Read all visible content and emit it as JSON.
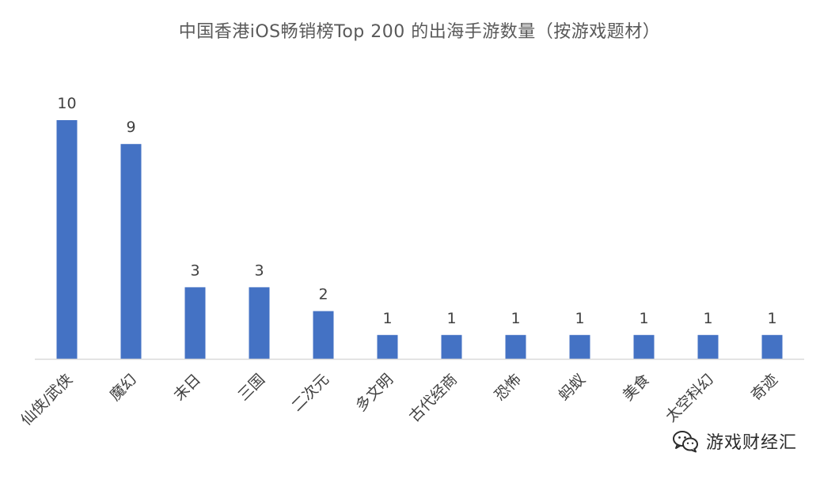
{
  "chart_data": {
    "type": "bar",
    "title": "中国香港iOS畅销榜Top 200 的出海手游数量（按游戏题材）",
    "categories": [
      "仙侠/武侠",
      "魔幻",
      "末日",
      "三国",
      "二次元",
      "多文明",
      "古代经商",
      "恐怖",
      "蚂蚁",
      "美食",
      "太空科幻",
      "奇迹"
    ],
    "values": [
      10,
      9,
      3,
      3,
      2,
      1,
      1,
      1,
      1,
      1,
      1,
      1
    ],
    "xlabel": "",
    "ylabel": "",
    "ylim": [
      0,
      10
    ],
    "grid": false,
    "legend": "none",
    "data_labels": true,
    "bar_color": "#4472C4",
    "axis_color": "#D9D9D9"
  },
  "watermark": {
    "icon": "wechat-icon",
    "text": "游戏财经汇"
  }
}
